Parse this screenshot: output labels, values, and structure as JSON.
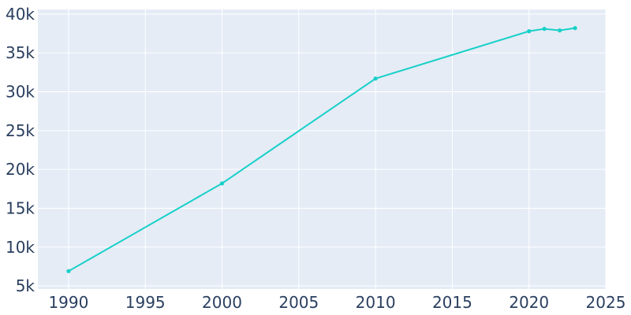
{
  "chart_data": {
    "type": "line",
    "title": "",
    "xlabel": "",
    "ylabel": "",
    "xlim": [
      1988,
      2025
    ],
    "ylim": [
      4600,
      40600
    ],
    "grid": true,
    "legend": "none",
    "x_ticks": [
      1990,
      1995,
      2000,
      2005,
      2010,
      2015,
      2020,
      2025
    ],
    "x_tick_labels": [
      "1990",
      "1995",
      "2000",
      "2005",
      "2010",
      "2015",
      "2020",
      "2025"
    ],
    "y_ticks": [
      5000,
      10000,
      15000,
      20000,
      25000,
      30000,
      35000,
      40000
    ],
    "y_tick_labels": [
      "5k",
      "10k",
      "15k",
      "20k",
      "25k",
      "30k",
      "35k",
      "40k"
    ],
    "series": [
      {
        "color": "#17d0c8",
        "x": [
          1990,
          2000,
          2010,
          2020,
          2021,
          2022,
          2023
        ],
        "y": [
          6900,
          18200,
          31700,
          37800,
          38100,
          37900,
          38200
        ]
      }
    ],
    "plot_background": "#e5ecf6",
    "text_color": "#2a3f5f"
  }
}
